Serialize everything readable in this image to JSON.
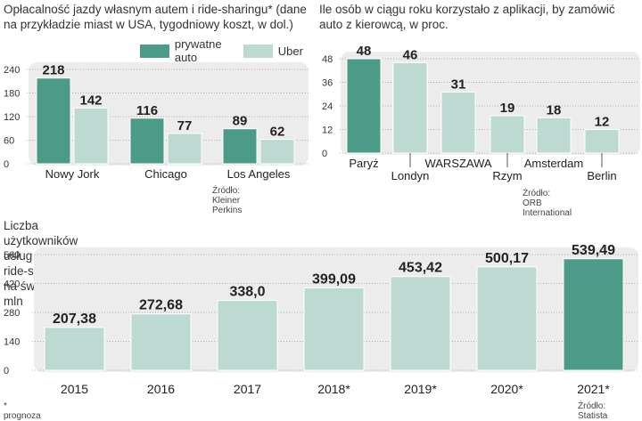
{
  "colors": {
    "dark": "#4c9a88",
    "light": "#bcdad2",
    "bg": "#ececec",
    "axis": "#999999"
  },
  "chart_data": [
    {
      "type": "bar",
      "title": "Opłacalność jazdy własnym autem i ride-sharingu* (dane na przykładzie miast w USA, tygodniowy koszt, w dol.)",
      "title_lines": [
        "Opłacalność jazdy własnym autem i ride-sharingu* (dane",
        "na przykładzie miast w USA, tygodniowy koszt, w dol.)"
      ],
      "categories": [
        "Nowy Jork",
        "Chicago",
        "Los Angeles"
      ],
      "series": [
        {
          "name": "prywatne auto",
          "values": [
            218,
            116,
            89
          ],
          "labels": [
            "218",
            "116",
            "89"
          ]
        },
        {
          "name": "Uber",
          "values": [
            142,
            77,
            62
          ],
          "labels": [
            "142",
            "77",
            "62"
          ]
        }
      ],
      "yticks": [
        "240",
        "180",
        "120",
        "60",
        "0"
      ],
      "ylim": [
        0,
        240
      ],
      "legend_position": "top",
      "source": "Źródło: Kleiner Perkins"
    },
    {
      "type": "bar",
      "title": "Ile osób w ciągu roku korzystało z aplikacji, by zamówić auto z kierowcą, w proc.",
      "title_lines": [
        "Ile osób w ciągu roku korzystało z aplikacji, by zamówić",
        "auto z kierowcą, w proc."
      ],
      "categories": [
        "Paryż",
        "Londyn",
        "WARSZAWA",
        "Rzym",
        "Amsterdam",
        "Berlin"
      ],
      "values": [
        48,
        46,
        31,
        19,
        18,
        12
      ],
      "labels": [
        "48",
        "46",
        "31",
        "19",
        "18",
        "12"
      ],
      "highlight": [
        true,
        false,
        false,
        false,
        false,
        false
      ],
      "yticks": [
        "48",
        "36",
        "24",
        "12",
        "0"
      ],
      "ylim": [
        0,
        48
      ],
      "source": "Źródło: ORB International"
    },
    {
      "type": "bar",
      "title": "Liczba użytkowników usług typu ride-sharing na świecie, w mln",
      "categories": [
        "2015",
        "2016",
        "2017",
        "2018*",
        "2019*",
        "2020*",
        "2021*"
      ],
      "values": [
        207.38,
        272.68,
        338.0,
        399.09,
        453.42,
        500.17,
        539.49
      ],
      "labels": [
        "207,38",
        "272,68",
        "338,0",
        "399,09",
        "453,42",
        "500,17",
        "539,49"
      ],
      "highlight": [
        false,
        false,
        false,
        false,
        false,
        false,
        true
      ],
      "yticks": [
        "560",
        "420",
        "280",
        "140",
        "0"
      ],
      "ylim": [
        0,
        560
      ],
      "source": "Źródło: Statista",
      "footnote": "* prognoza"
    }
  ]
}
